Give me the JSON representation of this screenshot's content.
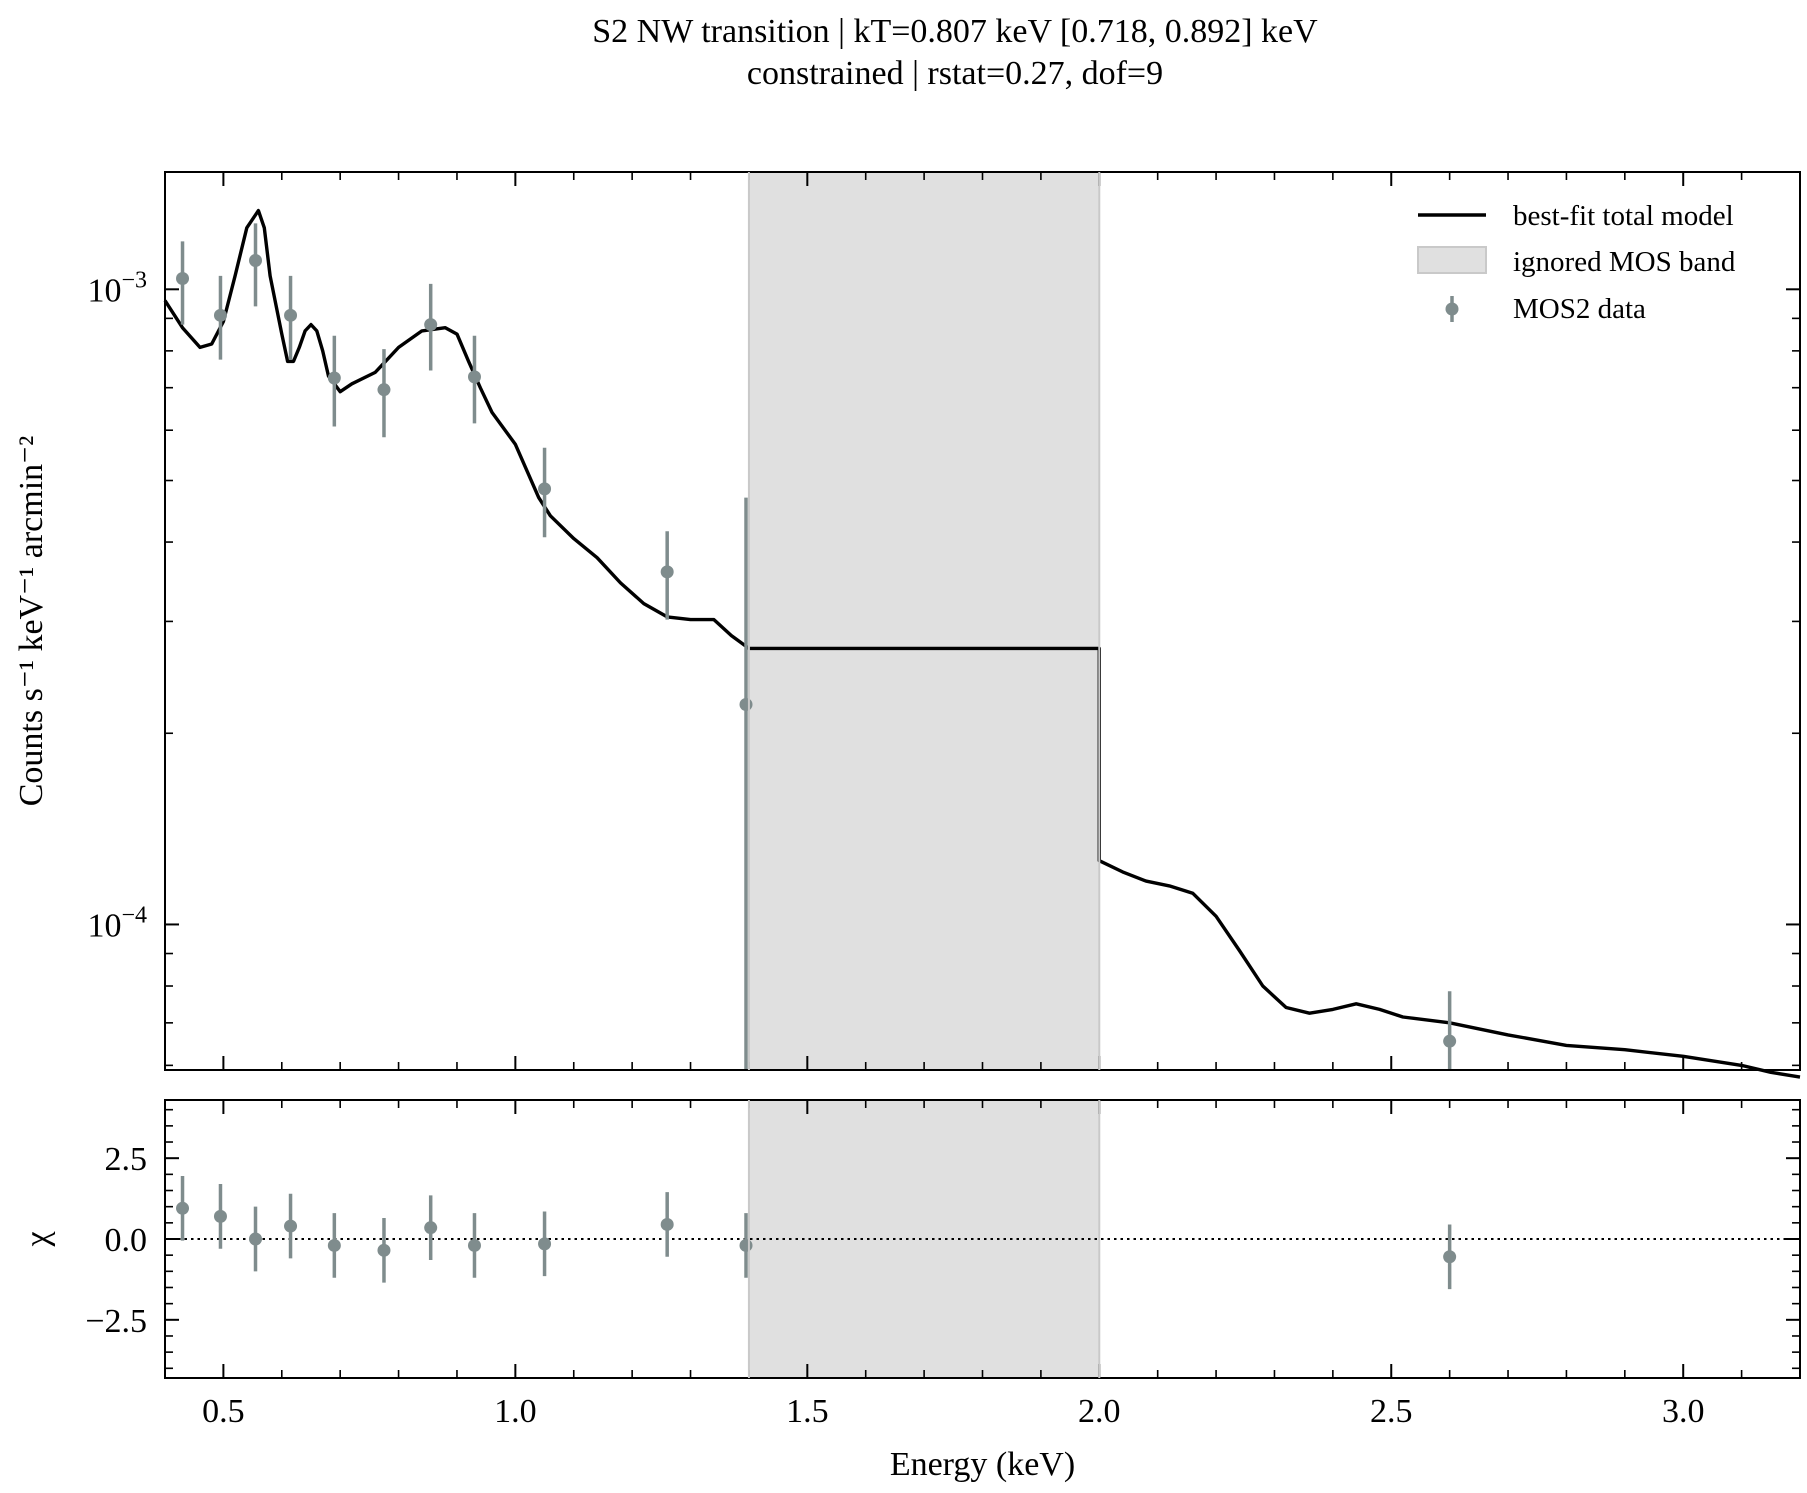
{
  "title_line1": "S2 NW transition | kT=0.807 keV [0.718, 0.892] keV",
  "title_line2": "constrained | rstat=0.27, dof=9",
  "colors": {
    "model": "#000000",
    "data": "#7f8c8d",
    "band": "#e0e0e0",
    "band_edge": "#c9c9c9"
  },
  "chart_data": [
    {
      "type": "line",
      "panel": "spectrum",
      "ylabel": "Counts s⁻¹ keV⁻¹ arcmin⁻²",
      "yscale": "log",
      "ylim": [
        5.9e-05,
        0.00153
      ],
      "xlim": [
        0.4,
        3.2
      ],
      "ytick_labels": [
        {
          "value": 0.001,
          "base": "10",
          "exp": "−3"
        },
        {
          "value": 0.0001,
          "base": "10",
          "exp": "−4"
        }
      ],
      "ignored_band": [
        1.4,
        2.0
      ],
      "legend_position": "top-right",
      "legend": [
        {
          "label": "best-fit total model",
          "kind": "line"
        },
        {
          "label": "ignored MOS band",
          "kind": "patch"
        },
        {
          "label": "MOS2 data",
          "kind": "errorbar"
        }
      ],
      "model": {
        "name": "best-fit total model",
        "x": [
          0.4,
          0.43,
          0.46,
          0.48,
          0.5,
          0.52,
          0.54,
          0.56,
          0.57,
          0.58,
          0.6,
          0.61,
          0.62,
          0.63,
          0.64,
          0.65,
          0.66,
          0.67,
          0.68,
          0.7,
          0.72,
          0.76,
          0.8,
          0.84,
          0.88,
          0.9,
          0.92,
          0.94,
          0.96,
          1.0,
          1.04,
          1.06,
          1.1,
          1.14,
          1.18,
          1.22,
          1.26,
          1.3,
          1.34,
          1.37,
          1.4,
          1.5,
          2.0,
          2.0,
          2.04,
          2.08,
          2.12,
          2.16,
          2.2,
          2.24,
          2.28,
          2.32,
          2.36,
          2.4,
          2.44,
          2.48,
          2.52,
          2.6,
          2.7,
          2.8,
          2.9,
          3.0,
          3.1,
          3.15,
          3.2
        ],
        "y": [
          0.00096,
          0.00087,
          0.00081,
          0.00082,
          0.00089,
          0.00105,
          0.00125,
          0.00133,
          0.00125,
          0.00105,
          0.00085,
          0.00077,
          0.00077,
          0.00081,
          0.00086,
          0.00088,
          0.00086,
          0.0008,
          0.00073,
          0.00069,
          0.00071,
          0.00074,
          0.00081,
          0.00086,
          0.00087,
          0.00085,
          0.00077,
          0.0007,
          0.00064,
          0.00057,
          0.00047,
          0.00044,
          0.000405,
          0.000378,
          0.000345,
          0.00032,
          0.000305,
          0.000302,
          0.000302,
          0.000285,
          0.000272,
          0.000272,
          0.000272,
          0.000126,
          0.000121,
          0.000117,
          0.000115,
          0.000112,
          0.000103,
          9.1e-05,
          8e-05,
          7.4e-05,
          7.25e-05,
          7.35e-05,
          7.5e-05,
          7.35e-05,
          7.15e-05,
          7e-05,
          6.7e-05,
          6.45e-05,
          6.35e-05,
          6.2e-05,
          6e-05,
          5.85e-05,
          5.75e-05
        ]
      },
      "data": {
        "name": "MOS2 data",
        "x": [
          0.43,
          0.495,
          0.555,
          0.615,
          0.69,
          0.775,
          0.855,
          0.93,
          1.05,
          1.26,
          1.395,
          2.6
        ],
        "y": [
          0.00104,
          0.00091,
          0.00111,
          0.00091,
          0.000725,
          0.000695,
          0.00088,
          0.000728,
          0.000485,
          0.000359,
          0.000222,
          6.55e-05
        ],
        "yerr_low": [
          0.00088,
          0.000775,
          0.00094,
          0.000775,
          0.000608,
          0.000585,
          0.000745,
          0.000615,
          0.000407,
          0.000302,
          5.9e-05,
          5.25e-05
        ],
        "yerr_high": [
          0.00119,
          0.00105,
          0.00127,
          0.00105,
          0.000845,
          0.000805,
          0.00102,
          0.000845,
          0.000563,
          0.000416,
          0.00047,
          7.85e-05
        ]
      }
    },
    {
      "type": "scatter",
      "panel": "residuals",
      "ylabel": "χ",
      "xlabel": "Energy (keV)",
      "xlim": [
        0.4,
        3.2
      ],
      "ylim": [
        -4.3,
        4.3
      ],
      "yticks": [
        -2.5,
        0.0,
        2.5
      ],
      "ytick_labels": [
        "−2.5",
        "0.0",
        "2.5"
      ],
      "xticks": [
        0.5,
        1.0,
        1.5,
        2.0,
        2.5,
        3.0
      ],
      "xtick_labels": [
        "0.5",
        "1.0",
        "1.5",
        "2.0",
        "2.5",
        "3.0"
      ],
      "zero_line": "dotted",
      "ignored_band": [
        1.4,
        2.0
      ],
      "residuals": {
        "x": [
          0.43,
          0.495,
          0.555,
          0.615,
          0.69,
          0.775,
          0.855,
          0.93,
          1.05,
          1.26,
          1.395,
          2.6
        ],
        "y": [
          0.95,
          0.7,
          0.0,
          0.4,
          -0.2,
          -0.35,
          0.35,
          -0.2,
          -0.15,
          0.45,
          -0.2,
          -0.55
        ],
        "err": [
          1.0,
          1.0,
          1.0,
          1.0,
          1.0,
          1.0,
          1.0,
          1.0,
          1.0,
          1.0,
          1.0,
          1.0
        ]
      }
    }
  ]
}
